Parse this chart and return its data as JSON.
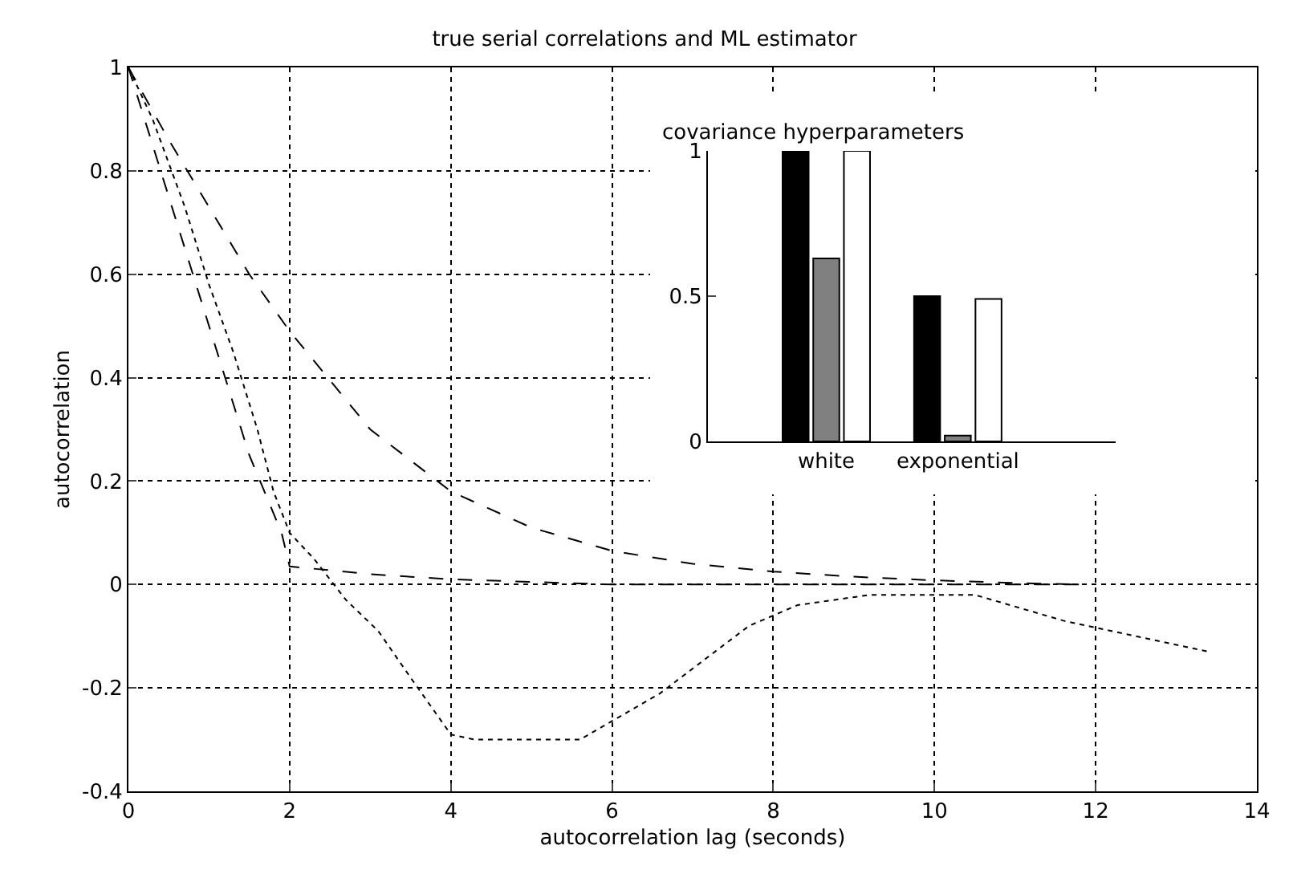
{
  "chart_data": [
    {
      "type": "line",
      "title": "true serial correlations and ML estimator",
      "xlabel": "autocorrelation lag (seconds)",
      "ylabel": "autocorrelation",
      "xlim": [
        0,
        14
      ],
      "ylim": [
        -0.4,
        1
      ],
      "xticks": [
        0,
        2,
        4,
        6,
        8,
        10,
        12,
        14
      ],
      "yticks": [
        -0.4,
        -0.2,
        0,
        0.2,
        0.4,
        0.6,
        0.8,
        1
      ],
      "grid": true,
      "series": [
        {
          "color": "#000000",
          "line_style": "dashed",
          "x": [
            0,
            0.5,
            1,
            1.5,
            2,
            3,
            4,
            5,
            6,
            7,
            8,
            9,
            10,
            11,
            11.8
          ],
          "values": [
            1,
            0.86,
            0.73,
            0.6,
            0.49,
            0.3,
            0.18,
            0.11,
            0.065,
            0.04,
            0.025,
            0.015,
            0.008,
            0.003,
            0
          ]
        },
        {
          "color": "#000000",
          "line_style": "dashed",
          "x": [
            0,
            0.5,
            1,
            1.5,
            1.9,
            2,
            3,
            4,
            5,
            6,
            8,
            10,
            11.8
          ],
          "values": [
            1,
            0.75,
            0.5,
            0.25,
            0.1,
            0.035,
            0.02,
            0.01,
            0.005,
            0,
            0,
            0,
            0
          ]
        },
        {
          "color": "#000000",
          "line_style": "dotted",
          "x": [
            0,
            0.3,
            0.7,
            1,
            1.3,
            1.6,
            1.8,
            2,
            2.3,
            2.7,
            3.1,
            3.5,
            4,
            4.3,
            5,
            5.6,
            6.6,
            7.7,
            8.3,
            9.2,
            10.5,
            11.6,
            12.5,
            13.4
          ],
          "values": [
            1,
            0.9,
            0.73,
            0.58,
            0.45,
            0.3,
            0.18,
            0.1,
            0.05,
            -0.03,
            -0.09,
            -0.18,
            -0.29,
            -0.3,
            -0.3,
            -0.3,
            -0.21,
            -0.08,
            -0.04,
            -0.02,
            -0.02,
            -0.07,
            -0.1,
            -0.13
          ]
        }
      ]
    },
    {
      "type": "bar",
      "title": "covariance hyperparameters",
      "categories": [
        "white",
        "exponential"
      ],
      "ylim": [
        0,
        1
      ],
      "yticks": [
        0,
        0.5,
        1
      ],
      "series": [
        {
          "color": "#000000",
          "values": [
            1,
            0.5
          ]
        },
        {
          "color": "#808080",
          "values": [
            0.63,
            0.02
          ]
        },
        {
          "color": "#ffffff",
          "values": [
            1,
            0.49
          ]
        }
      ]
    }
  ]
}
